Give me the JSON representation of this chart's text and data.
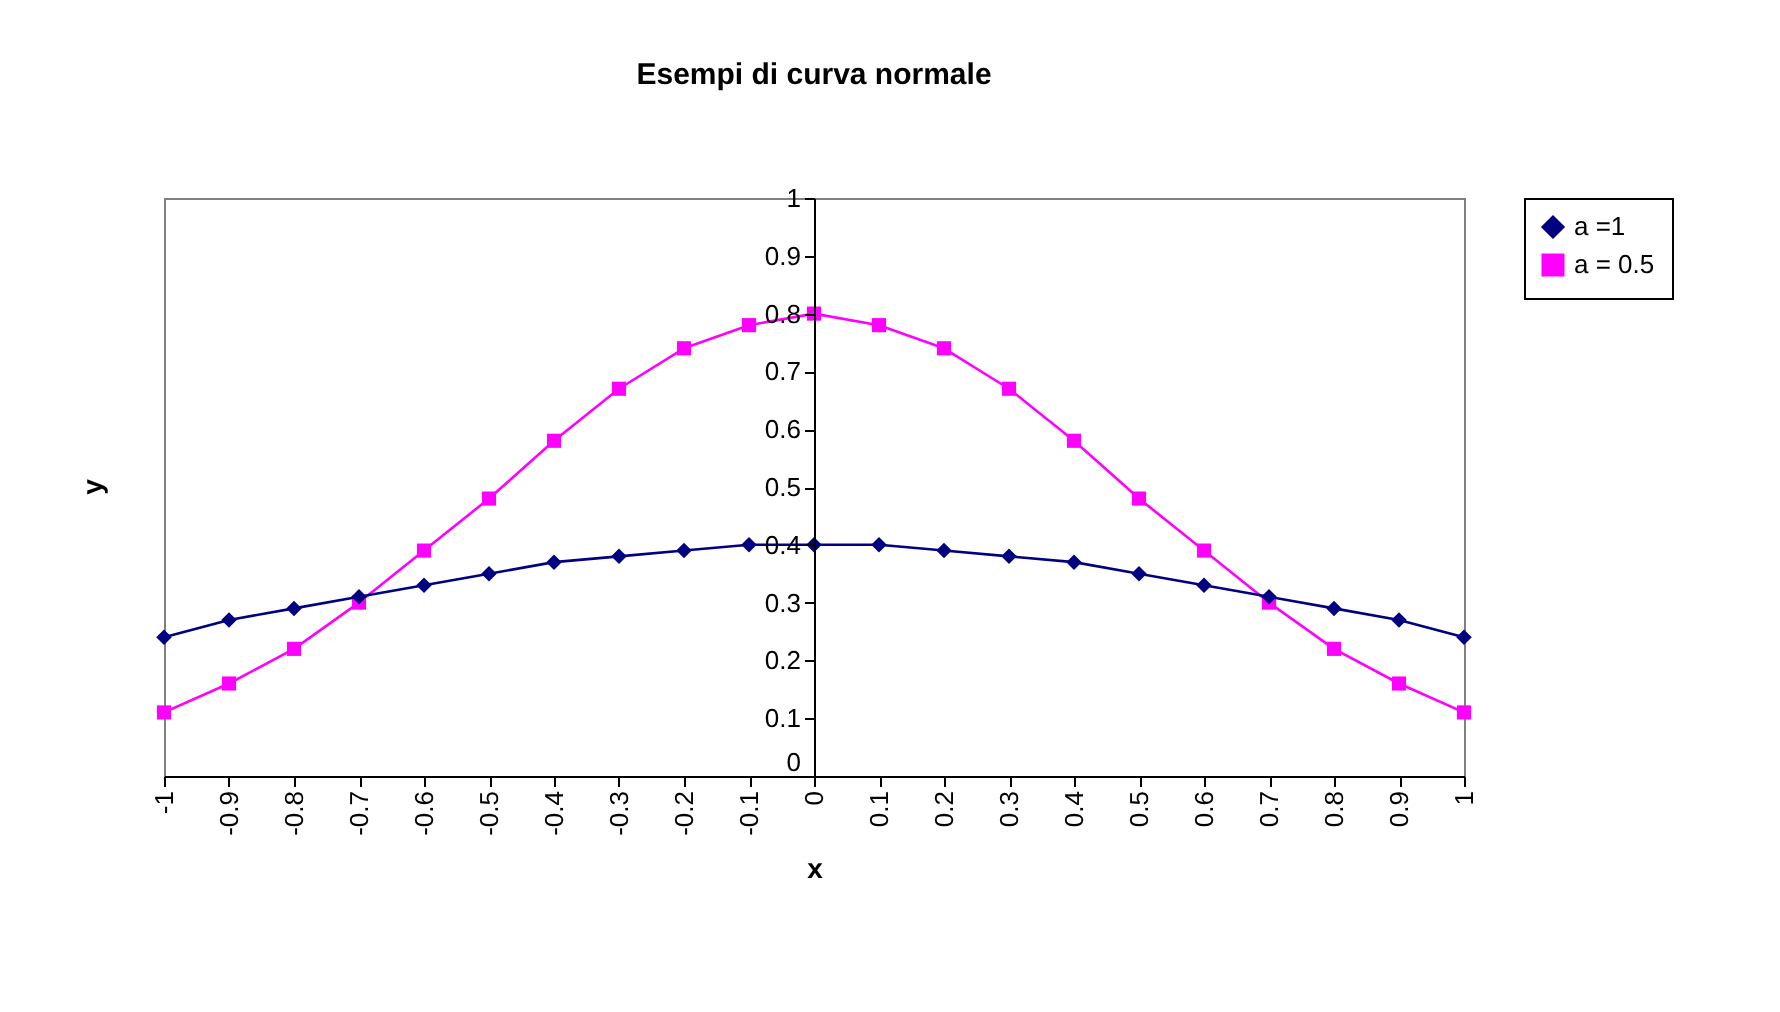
{
  "chart_data": {
    "type": "line",
    "title": "Esempi di curva normale",
    "xlabel": "x",
    "ylabel": "y",
    "x": [
      -1,
      -0.9,
      -0.8,
      -0.7,
      -0.6,
      -0.5,
      -0.4,
      -0.3,
      -0.2,
      -0.1,
      0,
      0.1,
      0.2,
      0.3,
      0.4,
      0.5,
      0.6,
      0.7,
      0.8,
      0.9,
      1
    ],
    "series": [
      {
        "name": "a =1",
        "color": "#000080",
        "marker": "diamond",
        "values": [
          0.24,
          0.27,
          0.29,
          0.31,
          0.33,
          0.35,
          0.37,
          0.38,
          0.39,
          0.4,
          0.4,
          0.4,
          0.39,
          0.38,
          0.37,
          0.35,
          0.33,
          0.31,
          0.29,
          0.27,
          0.24
        ]
      },
      {
        "name": "a = 0.5",
        "color": "#ff00ff",
        "marker": "square",
        "values": [
          0.11,
          0.16,
          0.22,
          0.3,
          0.39,
          0.48,
          0.58,
          0.67,
          0.74,
          0.78,
          0.8,
          0.78,
          0.74,
          0.67,
          0.58,
          0.48,
          0.39,
          0.3,
          0.22,
          0.16,
          0.11
        ]
      }
    ],
    "xlim": [
      -1,
      1
    ],
    "xticks": [
      -1,
      -0.9,
      -0.8,
      -0.7,
      -0.6,
      -0.5,
      -0.4,
      -0.3,
      -0.2,
      -0.1,
      0,
      0.1,
      0.2,
      0.3,
      0.4,
      0.5,
      0.6,
      0.7,
      0.8,
      0.9,
      1
    ],
    "ylim": [
      0,
      1
    ],
    "yticks": [
      0,
      0.1,
      0.2,
      0.3,
      0.4,
      0.5,
      0.6,
      0.7,
      0.8,
      0.9,
      1
    ],
    "grid": false,
    "legend": "right",
    "line_style": "solid"
  }
}
